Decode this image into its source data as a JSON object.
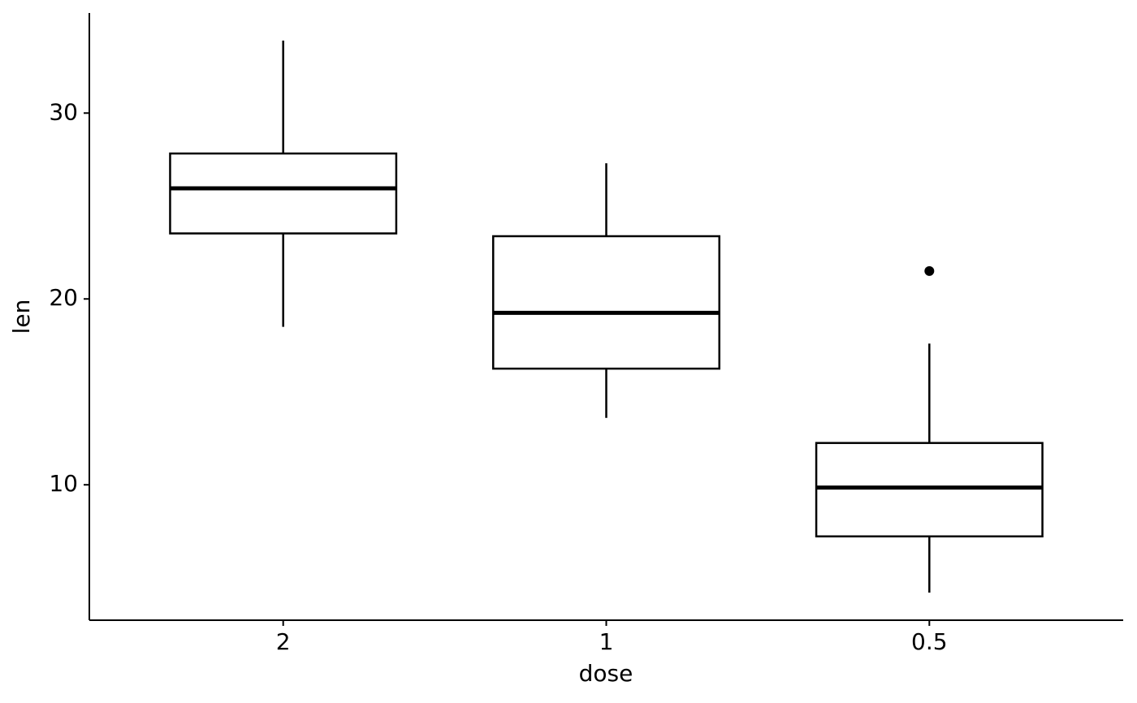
{
  "chart_data": {
    "type": "box",
    "x_label": "dose",
    "y_label": "len",
    "categories": [
      "2",
      "1",
      "0.5"
    ],
    "whisker_low": [
      18.5,
      13.6,
      4.2
    ],
    "q1": [
      23.525,
      16.25,
      7.225
    ],
    "median": [
      25.95,
      19.25,
      9.85
    ],
    "q3": [
      27.825,
      23.375,
      12.25
    ],
    "whisker_high": [
      33.9,
      27.3,
      17.6
    ],
    "outliers": [
      [],
      [],
      [
        21.5
      ]
    ],
    "color": "#000000",
    "ylim": [
      2.715,
      35.385
    ],
    "yticks": [
      10,
      20,
      30
    ]
  }
}
